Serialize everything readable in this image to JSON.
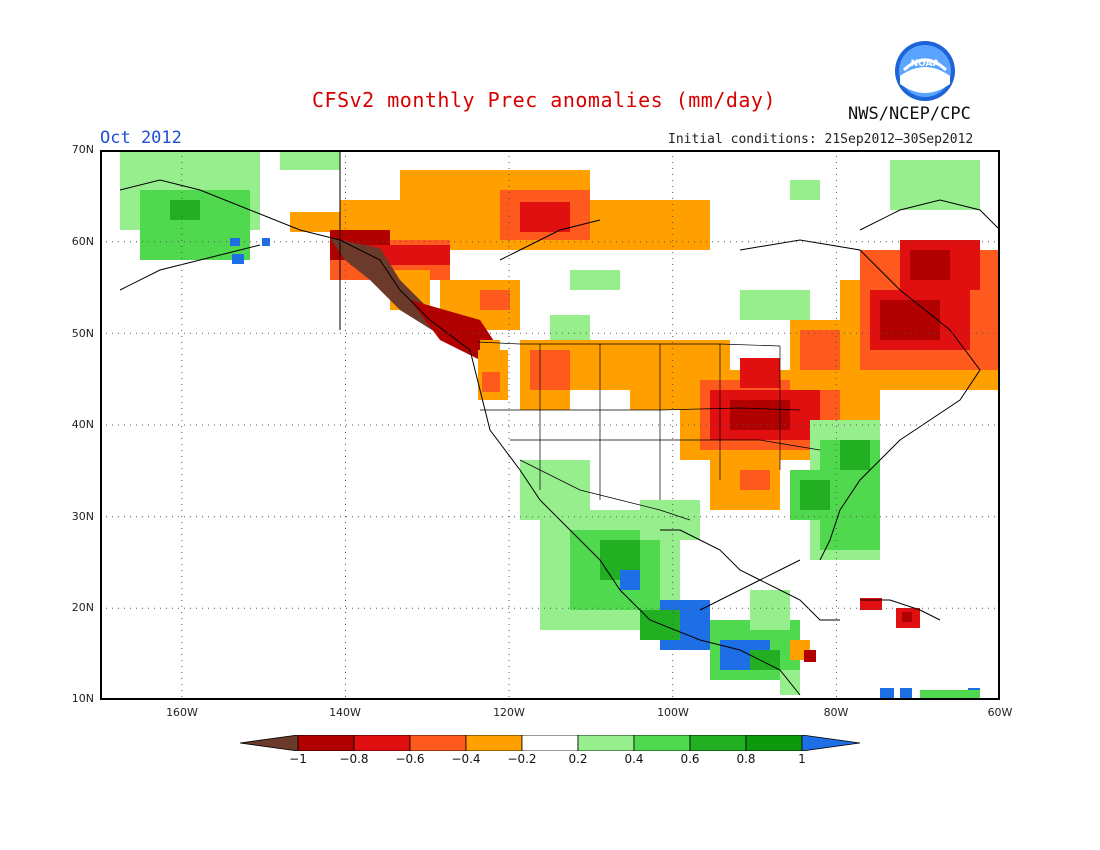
{
  "title": "CFSv2 monthly Prec anomalies (mm/day)",
  "month": "Oct 2012",
  "agency": "NWS/NCEP/CPC",
  "initial_conditions": "Initial conditions: 21Sep2012–30Sep2012",
  "logo_text": "NOAA",
  "lat_labels": [
    "70N",
    "60N",
    "50N",
    "40N",
    "30N",
    "20N",
    "10N"
  ],
  "lon_labels": [
    "160W",
    "140W",
    "120W",
    "100W",
    "80W",
    "60W"
  ],
  "colorbar": {
    "labels": [
      "−1",
      "−0.8",
      "−0.6",
      "−0.4",
      "−0.2",
      "0.2",
      "0.4",
      "0.6",
      "0.8",
      "1"
    ],
    "colors": [
      "#6b3a2a",
      "#b00000",
      "#e01010",
      "#ff5a1e",
      "#ffa000",
      "#ffffff",
      "#96ee8c",
      "#50d84e",
      "#22b022",
      "#0c9a0c",
      "#1e6ee6"
    ]
  },
  "map_extent": {
    "lon_min": -170,
    "lon_max": -60,
    "lat_min": 10,
    "lat_max": 70
  }
}
